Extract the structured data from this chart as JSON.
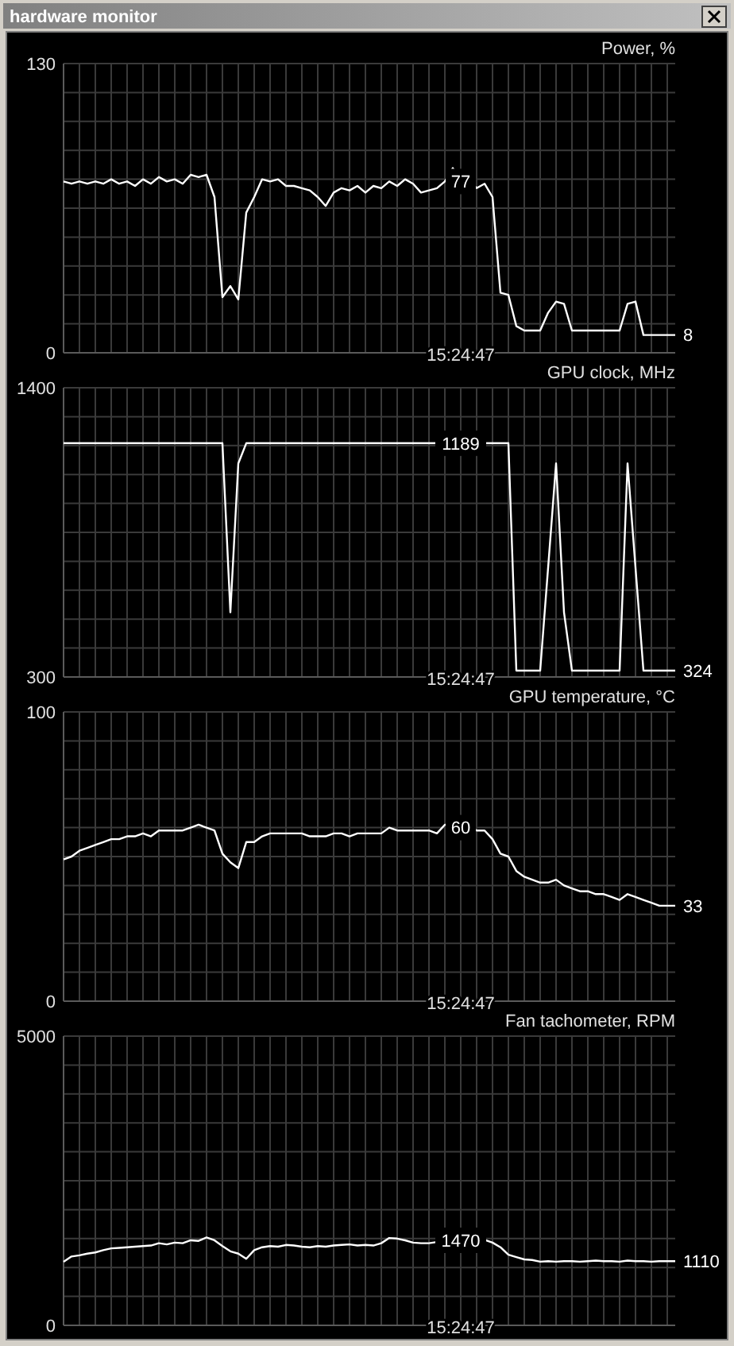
{
  "chart_data": [
    {
      "type": "line",
      "title": "hardware monitor",
      "ylabel": "Power, %",
      "categories": [
        null,
        null,
        null,
        null,
        null,
        null,
        null,
        null,
        null,
        null,
        null,
        null,
        null,
        null,
        null,
        null,
        null,
        null,
        null,
        null,
        null,
        null,
        null,
        null,
        null,
        null,
        null,
        null,
        null,
        null,
        null,
        null,
        null,
        null,
        null,
        null,
        null,
        null,
        null,
        null,
        null,
        null,
        null,
        null,
        null,
        null,
        null,
        null,
        null,
        null,
        null,
        null,
        null,
        null,
        null,
        null,
        null,
        null,
        null,
        null,
        null,
        null,
        null,
        null,
        null,
        null,
        null,
        null,
        null,
        null,
        null,
        null,
        null,
        null,
        null,
        null,
        null,
        null
      ],
      "values": [
        77,
        76,
        77,
        76,
        77,
        76,
        78,
        76,
        77,
        75,
        78,
        76,
        79,
        77,
        78,
        76,
        80,
        79,
        80,
        70,
        25,
        30,
        24,
        63,
        70,
        78,
        77,
        78,
        75,
        75,
        74,
        73,
        70,
        66,
        72,
        74,
        73,
        75,
        72,
        75,
        74,
        77,
        75,
        78,
        76,
        72,
        73,
        74,
        77,
        83,
        77,
        78,
        74,
        76,
        70,
        27,
        26,
        12,
        10,
        10,
        10,
        18,
        23,
        22,
        10,
        10,
        10,
        10,
        10,
        10,
        10,
        22,
        23,
        8,
        8,
        8,
        8,
        8
      ],
      "value_labels": [
        null,
        null,
        null,
        null,
        null,
        null,
        null,
        null,
        null,
        null,
        null,
        null,
        null,
        null,
        null,
        null,
        null,
        null,
        null,
        null,
        null,
        null,
        null,
        null,
        null,
        null,
        null,
        null,
        null,
        null,
        null,
        null,
        null,
        null,
        null,
        null,
        null,
        null,
        null,
        null,
        null,
        null,
        null,
        null,
        null,
        null,
        null,
        null,
        null,
        null,
        "77",
        null,
        null,
        null,
        null,
        null,
        null,
        null,
        null,
        null,
        null,
        null,
        null,
        null,
        null,
        null,
        null,
        null,
        null,
        null,
        null,
        null,
        null,
        null,
        null,
        null,
        null,
        "8"
      ],
      "color": "#ffffff",
      "ylim": [
        0,
        130
      ],
      "yticks": [
        0,
        {
          "value": 13,
          "label": null
        },
        {
          "value": 26,
          "label": null
        },
        {
          "value": 39,
          "label": null
        },
        {
          "value": 52,
          "label": null
        },
        {
          "value": 65,
          "label": null
        },
        {
          "value": 78,
          "label": null
        },
        {
          "value": 91,
          "label": null
        },
        {
          "value": 104,
          "label": null
        },
        {
          "value": 117,
          "label": null
        },
        130
      ],
      "annotations": [
        "15:24:47"
      ],
      "grid": true,
      "tick_labels": "y"
    },
    {
      "type": "line",
      "ylabel": "GPU clock, MHz",
      "categories": [
        null,
        null,
        null,
        null,
        null,
        null,
        null,
        null,
        null,
        null,
        null,
        null,
        null,
        null,
        null,
        null,
        null,
        null,
        null,
        null,
        null,
        null,
        null,
        null,
        null,
        null,
        null,
        null,
        null,
        null,
        null,
        null,
        null,
        null,
        null,
        null,
        null,
        null,
        null,
        null,
        null,
        null,
        null,
        null,
        null,
        null,
        null,
        null,
        null,
        null,
        null,
        null,
        null,
        null,
        null,
        null,
        null,
        null,
        null,
        null,
        null,
        null,
        null,
        null,
        null,
        null,
        null,
        null,
        null,
        null,
        null,
        null,
        null,
        null,
        null,
        null,
        null,
        null
      ],
      "values": [
        1189,
        1189,
        1189,
        1189,
        1189,
        1189,
        1189,
        1189,
        1189,
        1189,
        1189,
        1189,
        1189,
        1189,
        1189,
        1189,
        1189,
        1189,
        1189,
        1189,
        1189,
        546,
        1112,
        1189,
        1189,
        1189,
        1189,
        1189,
        1189,
        1189,
        1189,
        1189,
        1189,
        1189,
        1189,
        1189,
        1189,
        1189,
        1189,
        1189,
        1189,
        1189,
        1189,
        1189,
        1189,
        1189,
        1189,
        1189,
        1189,
        1189,
        1189,
        1189,
        1189,
        1189,
        1189,
        1189,
        1189,
        324,
        324,
        324,
        324,
        716,
        1112,
        546,
        324,
        324,
        324,
        324,
        324,
        324,
        324,
        1112,
        716,
        324,
        324,
        324,
        324,
        324
      ],
      "value_labels": [
        null,
        null,
        null,
        null,
        null,
        null,
        null,
        null,
        null,
        null,
        null,
        null,
        null,
        null,
        null,
        null,
        null,
        null,
        null,
        null,
        null,
        null,
        null,
        null,
        null,
        null,
        null,
        null,
        null,
        null,
        null,
        null,
        null,
        null,
        null,
        null,
        null,
        null,
        null,
        null,
        null,
        null,
        null,
        null,
        null,
        null,
        null,
        null,
        null,
        null,
        "1189",
        null,
        null,
        null,
        null,
        null,
        null,
        null,
        null,
        null,
        null,
        null,
        null,
        null,
        null,
        null,
        null,
        null,
        null,
        null,
        null,
        null,
        null,
        null,
        null,
        null,
        null,
        "324"
      ],
      "color": "#ffffff",
      "ylim": [
        300,
        1400
      ],
      "yticks": [
        300,
        {
          "value": 410,
          "label": null
        },
        {
          "value": 520,
          "label": null
        },
        {
          "value": 630,
          "label": null
        },
        {
          "value": 740,
          "label": null
        },
        {
          "value": 850,
          "label": null
        },
        {
          "value": 960,
          "label": null
        },
        {
          "value": 1070,
          "label": null
        },
        {
          "value": 1180,
          "label": null
        },
        {
          "value": 1290,
          "label": null
        },
        1400
      ],
      "annotations": [
        "15:24:47"
      ],
      "grid": true,
      "tick_labels": "y"
    },
    {
      "type": "line",
      "ylabel": "GPU temperature, °C",
      "categories": [
        null,
        null,
        null,
        null,
        null,
        null,
        null,
        null,
        null,
        null,
        null,
        null,
        null,
        null,
        null,
        null,
        null,
        null,
        null,
        null,
        null,
        null,
        null,
        null,
        null,
        null,
        null,
        null,
        null,
        null,
        null,
        null,
        null,
        null,
        null,
        null,
        null,
        null,
        null,
        null,
        null,
        null,
        null,
        null,
        null,
        null,
        null,
        null,
        null,
        null,
        null,
        null,
        null,
        null,
        null,
        null,
        null,
        null,
        null,
        null,
        null,
        null,
        null,
        null,
        null,
        null,
        null,
        null,
        null,
        null,
        null,
        null,
        null,
        null,
        null,
        null,
        null,
        null
      ],
      "values": [
        49,
        50,
        52,
        53,
        54,
        55,
        56,
        56,
        57,
        57,
        58,
        57,
        59,
        59,
        59,
        59,
        60,
        61,
        60,
        59,
        51,
        48,
        46,
        55,
        55,
        57,
        58,
        58,
        58,
        58,
        58,
        57,
        57,
        57,
        58,
        58,
        57,
        58,
        58,
        58,
        58,
        60,
        59,
        59,
        59,
        59,
        59,
        58,
        61,
        61,
        60,
        60,
        59,
        59,
        56,
        51,
        50,
        45,
        43,
        42,
        41,
        41,
        42,
        40,
        39,
        38,
        38,
        37,
        37,
        36,
        35,
        37,
        36,
        35,
        34,
        33,
        33,
        33
      ],
      "value_labels": [
        null,
        null,
        null,
        null,
        null,
        null,
        null,
        null,
        null,
        null,
        null,
        null,
        null,
        null,
        null,
        null,
        null,
        null,
        null,
        null,
        null,
        null,
        null,
        null,
        null,
        null,
        null,
        null,
        null,
        null,
        null,
        null,
        null,
        null,
        null,
        null,
        null,
        null,
        null,
        null,
        null,
        null,
        null,
        null,
        null,
        null,
        null,
        null,
        null,
        null,
        "60",
        null,
        null,
        null,
        null,
        null,
        null,
        null,
        null,
        null,
        null,
        null,
        null,
        null,
        null,
        null,
        null,
        null,
        null,
        null,
        null,
        null,
        null,
        null,
        null,
        null,
        null,
        "33"
      ],
      "color": "#ffffff",
      "ylim": [
        0,
        100
      ],
      "yticks": [
        0,
        {
          "value": 10,
          "label": null
        },
        {
          "value": 20,
          "label": null
        },
        {
          "value": 30,
          "label": null
        },
        {
          "value": 40,
          "label": null
        },
        {
          "value": 50,
          "label": null
        },
        {
          "value": 60,
          "label": null
        },
        {
          "value": 70,
          "label": null
        },
        {
          "value": 80,
          "label": null
        },
        {
          "value": 90,
          "label": null
        },
        100
      ],
      "annotations": [
        "15:24:47"
      ],
      "grid": true,
      "tick_labels": "y"
    },
    {
      "type": "line",
      "ylabel": "Fan tachometer, RPM",
      "categories": [
        null,
        null,
        null,
        null,
        null,
        null,
        null,
        null,
        null,
        null,
        null,
        null,
        null,
        null,
        null,
        null,
        null,
        null,
        null,
        null,
        null,
        null,
        null,
        null,
        null,
        null,
        null,
        null,
        null,
        null,
        null,
        null,
        null,
        null,
        null,
        null,
        null,
        null,
        null,
        null,
        null,
        null,
        null,
        null,
        null,
        null,
        null,
        null,
        null,
        null,
        null,
        null,
        null,
        null,
        null,
        null,
        null,
        null,
        null,
        null,
        null,
        null,
        null,
        null,
        null,
        null,
        null,
        null,
        null,
        null,
        null,
        null,
        null,
        null,
        null,
        null,
        null,
        null
      ],
      "values": [
        1100,
        1190,
        1210,
        1240,
        1260,
        1300,
        1330,
        1340,
        1350,
        1360,
        1370,
        1380,
        1420,
        1400,
        1430,
        1420,
        1470,
        1460,
        1520,
        1470,
        1370,
        1280,
        1240,
        1150,
        1300,
        1350,
        1370,
        1360,
        1390,
        1380,
        1360,
        1350,
        1370,
        1360,
        1380,
        1390,
        1400,
        1380,
        1390,
        1380,
        1420,
        1510,
        1500,
        1470,
        1430,
        1420,
        1420,
        1440,
        1520,
        1580,
        1470,
        1480,
        1480,
        1480,
        1430,
        1350,
        1220,
        1180,
        1140,
        1130,
        1100,
        1110,
        1100,
        1110,
        1110,
        1100,
        1110,
        1120,
        1110,
        1110,
        1100,
        1120,
        1110,
        1110,
        1100,
        1110,
        1110,
        1110
      ],
      "value_labels": [
        null,
        null,
        null,
        null,
        null,
        null,
        null,
        null,
        null,
        null,
        null,
        null,
        null,
        null,
        null,
        null,
        null,
        null,
        null,
        null,
        null,
        null,
        null,
        null,
        null,
        null,
        null,
        null,
        null,
        null,
        null,
        null,
        null,
        null,
        null,
        null,
        null,
        null,
        null,
        null,
        null,
        null,
        null,
        null,
        null,
        null,
        null,
        null,
        null,
        null,
        "1470",
        null,
        null,
        null,
        null,
        null,
        null,
        null,
        null,
        null,
        null,
        null,
        null,
        null,
        null,
        null,
        null,
        null,
        null,
        null,
        null,
        null,
        null,
        null,
        null,
        null,
        null,
        "1110"
      ],
      "color": "#ffffff",
      "ylim": [
        0,
        5000
      ],
      "yticks": [
        0,
        {
          "value": 500,
          "label": null
        },
        {
          "value": 1000,
          "label": null
        },
        {
          "value": 1500,
          "label": null
        },
        {
          "value": 2000,
          "label": null
        },
        {
          "value": 2500,
          "label": null
        },
        {
          "value": 3000,
          "label": null
        },
        {
          "value": 3500,
          "label": null
        },
        {
          "value": 4000,
          "label": null
        },
        {
          "value": 4500,
          "label": null
        },
        5000
      ],
      "annotations": [
        "15:24:47"
      ],
      "grid": true,
      "tick_labels": "y"
    }
  ]
}
